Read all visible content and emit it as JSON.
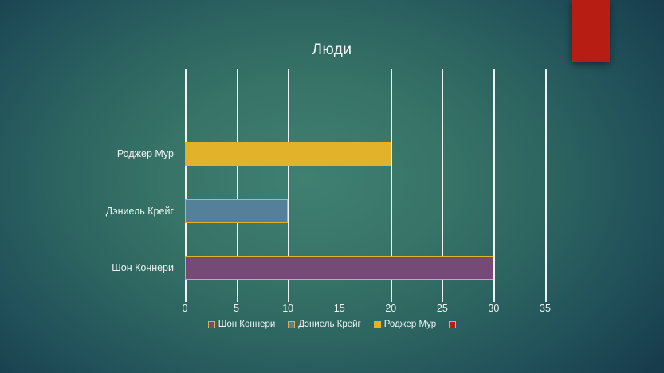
{
  "slide": {
    "title": "Люди"
  },
  "decor": {
    "accent_rectangle_color": "#b71d13"
  },
  "chart_data": {
    "type": "bar",
    "orientation": "horizontal",
    "title": "Люди",
    "categories": [
      "Роджер Мур",
      "Дэниель Крейг",
      "Шон Коннери"
    ],
    "values": [
      20,
      10,
      30
    ],
    "bar_colors": [
      "#e2b32a",
      "#54809a",
      "#764a77"
    ],
    "bar_border_color": "#e2b32a",
    "xlim": [
      0,
      35
    ],
    "x_ticks": [
      0,
      5,
      10,
      15,
      20,
      25,
      30,
      35
    ],
    "grid": true,
    "gridline_color": "#ffffff",
    "legend_position": "bottom",
    "legend": [
      {
        "label": "Шон Коннери",
        "color": "#764a77"
      },
      {
        "label": "Дэниель Крейг",
        "color": "#54809a"
      },
      {
        "label": "Роджер Мур",
        "color": "#e2b32a"
      },
      {
        "label": "",
        "color": "#b71d13"
      }
    ]
  }
}
